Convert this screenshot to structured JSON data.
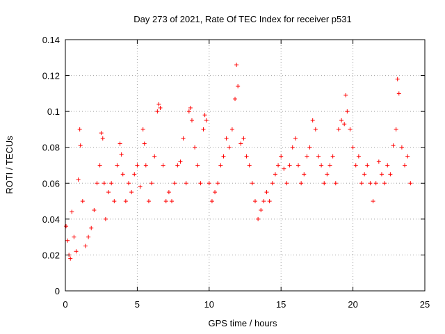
{
  "chart_data": {
    "type": "scatter",
    "title": "Day 273 of 2021, Rate Of TEC Index for receiver p531",
    "xlabel": "GPS time / hours",
    "ylabel": "ROTI / TECUs",
    "xlim": [
      0,
      25
    ],
    "ylim": [
      0,
      0.14
    ],
    "x_ticks": [
      0,
      5,
      10,
      15,
      20,
      25
    ],
    "x_tick_labels": [
      "0",
      "5",
      "10",
      "15",
      "20",
      "25"
    ],
    "y_ticks": [
      0,
      0.02,
      0.04,
      0.06,
      0.08,
      0.1,
      0.12,
      0.14
    ],
    "y_tick_labels": [
      "0",
      "0.02",
      "0.04",
      "0.06",
      "0.08",
      "0.1",
      "0.12",
      "0.14"
    ],
    "grid": true,
    "marker": "+",
    "marker_color": "#ff0000",
    "series": [
      {
        "x": [
          0.05,
          0.15,
          0.25,
          0.35,
          0.45,
          0.6,
          0.75,
          0.9,
          1.0,
          1.05,
          1.2,
          1.4,
          1.6,
          1.8,
          2.0,
          2.2,
          2.4,
          2.5,
          2.6,
          2.7,
          2.8,
          3.0,
          3.2,
          3.4,
          3.6,
          3.8,
          3.9,
          4.0,
          4.2,
          4.4,
          4.6,
          4.8,
          5.0,
          5.2,
          5.4,
          5.5,
          5.6,
          5.8,
          6.0,
          6.2,
          6.4,
          6.5,
          6.6,
          6.8,
          7.0,
          7.2,
          7.4,
          7.6,
          7.8,
          8.0,
          8.2,
          8.4,
          8.6,
          8.7,
          8.8,
          9.0,
          9.2,
          9.4,
          9.6,
          9.7,
          9.8,
          10.0,
          10.2,
          10.4,
          10.6,
          10.8,
          11.0,
          11.2,
          11.4,
          11.6,
          11.8,
          11.9,
          12.0,
          12.2,
          12.4,
          12.6,
          12.8,
          13.0,
          13.2,
          13.4,
          13.6,
          13.8,
          14.0,
          14.2,
          14.4,
          14.6,
          14.8,
          15.0,
          15.2,
          15.4,
          15.6,
          15.8,
          16.0,
          16.2,
          16.4,
          16.6,
          16.8,
          17.0,
          17.2,
          17.4,
          17.6,
          17.8,
          18.0,
          18.2,
          18.4,
          18.6,
          18.8,
          19.0,
          19.2,
          19.4,
          19.5,
          19.6,
          19.8,
          20.0,
          20.2,
          20.4,
          20.6,
          20.8,
          21.0,
          21.2,
          21.4,
          21.6,
          21.8,
          22.0,
          22.2,
          22.4,
          22.6,
          22.8,
          23.0,
          23.1,
          23.2,
          23.4,
          23.6,
          23.8,
          24.0
        ],
        "y": [
          0.036,
          0.028,
          0.02,
          0.018,
          0.044,
          0.03,
          0.022,
          0.062,
          0.09,
          0.081,
          0.05,
          0.025,
          0.03,
          0.035,
          0.045,
          0.06,
          0.07,
          0.088,
          0.085,
          0.06,
          0.04,
          0.055,
          0.06,
          0.05,
          0.07,
          0.082,
          0.076,
          0.065,
          0.05,
          0.06,
          0.055,
          0.065,
          0.07,
          0.058,
          0.09,
          0.082,
          0.07,
          0.05,
          0.06,
          0.075,
          0.1,
          0.104,
          0.102,
          0.07,
          0.05,
          0.055,
          0.05,
          0.06,
          0.07,
          0.072,
          0.085,
          0.06,
          0.1,
          0.102,
          0.095,
          0.08,
          0.07,
          0.06,
          0.09,
          0.098,
          0.095,
          0.06,
          0.05,
          0.055,
          0.06,
          0.07,
          0.075,
          0.085,
          0.08,
          0.09,
          0.107,
          0.126,
          0.114,
          0.082,
          0.085,
          0.075,
          0.07,
          0.06,
          0.05,
          0.04,
          0.045,
          0.05,
          0.055,
          0.05,
          0.06,
          0.065,
          0.07,
          0.075,
          0.068,
          0.06,
          0.07,
          0.08,
          0.085,
          0.07,
          0.06,
          0.065,
          0.075,
          0.08,
          0.095,
          0.09,
          0.075,
          0.07,
          0.06,
          0.065,
          0.07,
          0.075,
          0.06,
          0.09,
          0.095,
          0.093,
          0.109,
          0.1,
          0.09,
          0.08,
          0.07,
          0.075,
          0.06,
          0.065,
          0.07,
          0.06,
          0.05,
          0.06,
          0.072,
          0.065,
          0.06,
          0.07,
          0.065,
          0.081,
          0.09,
          0.118,
          0.11,
          0.08,
          0.07,
          0.075,
          0.06
        ]
      }
    ]
  }
}
